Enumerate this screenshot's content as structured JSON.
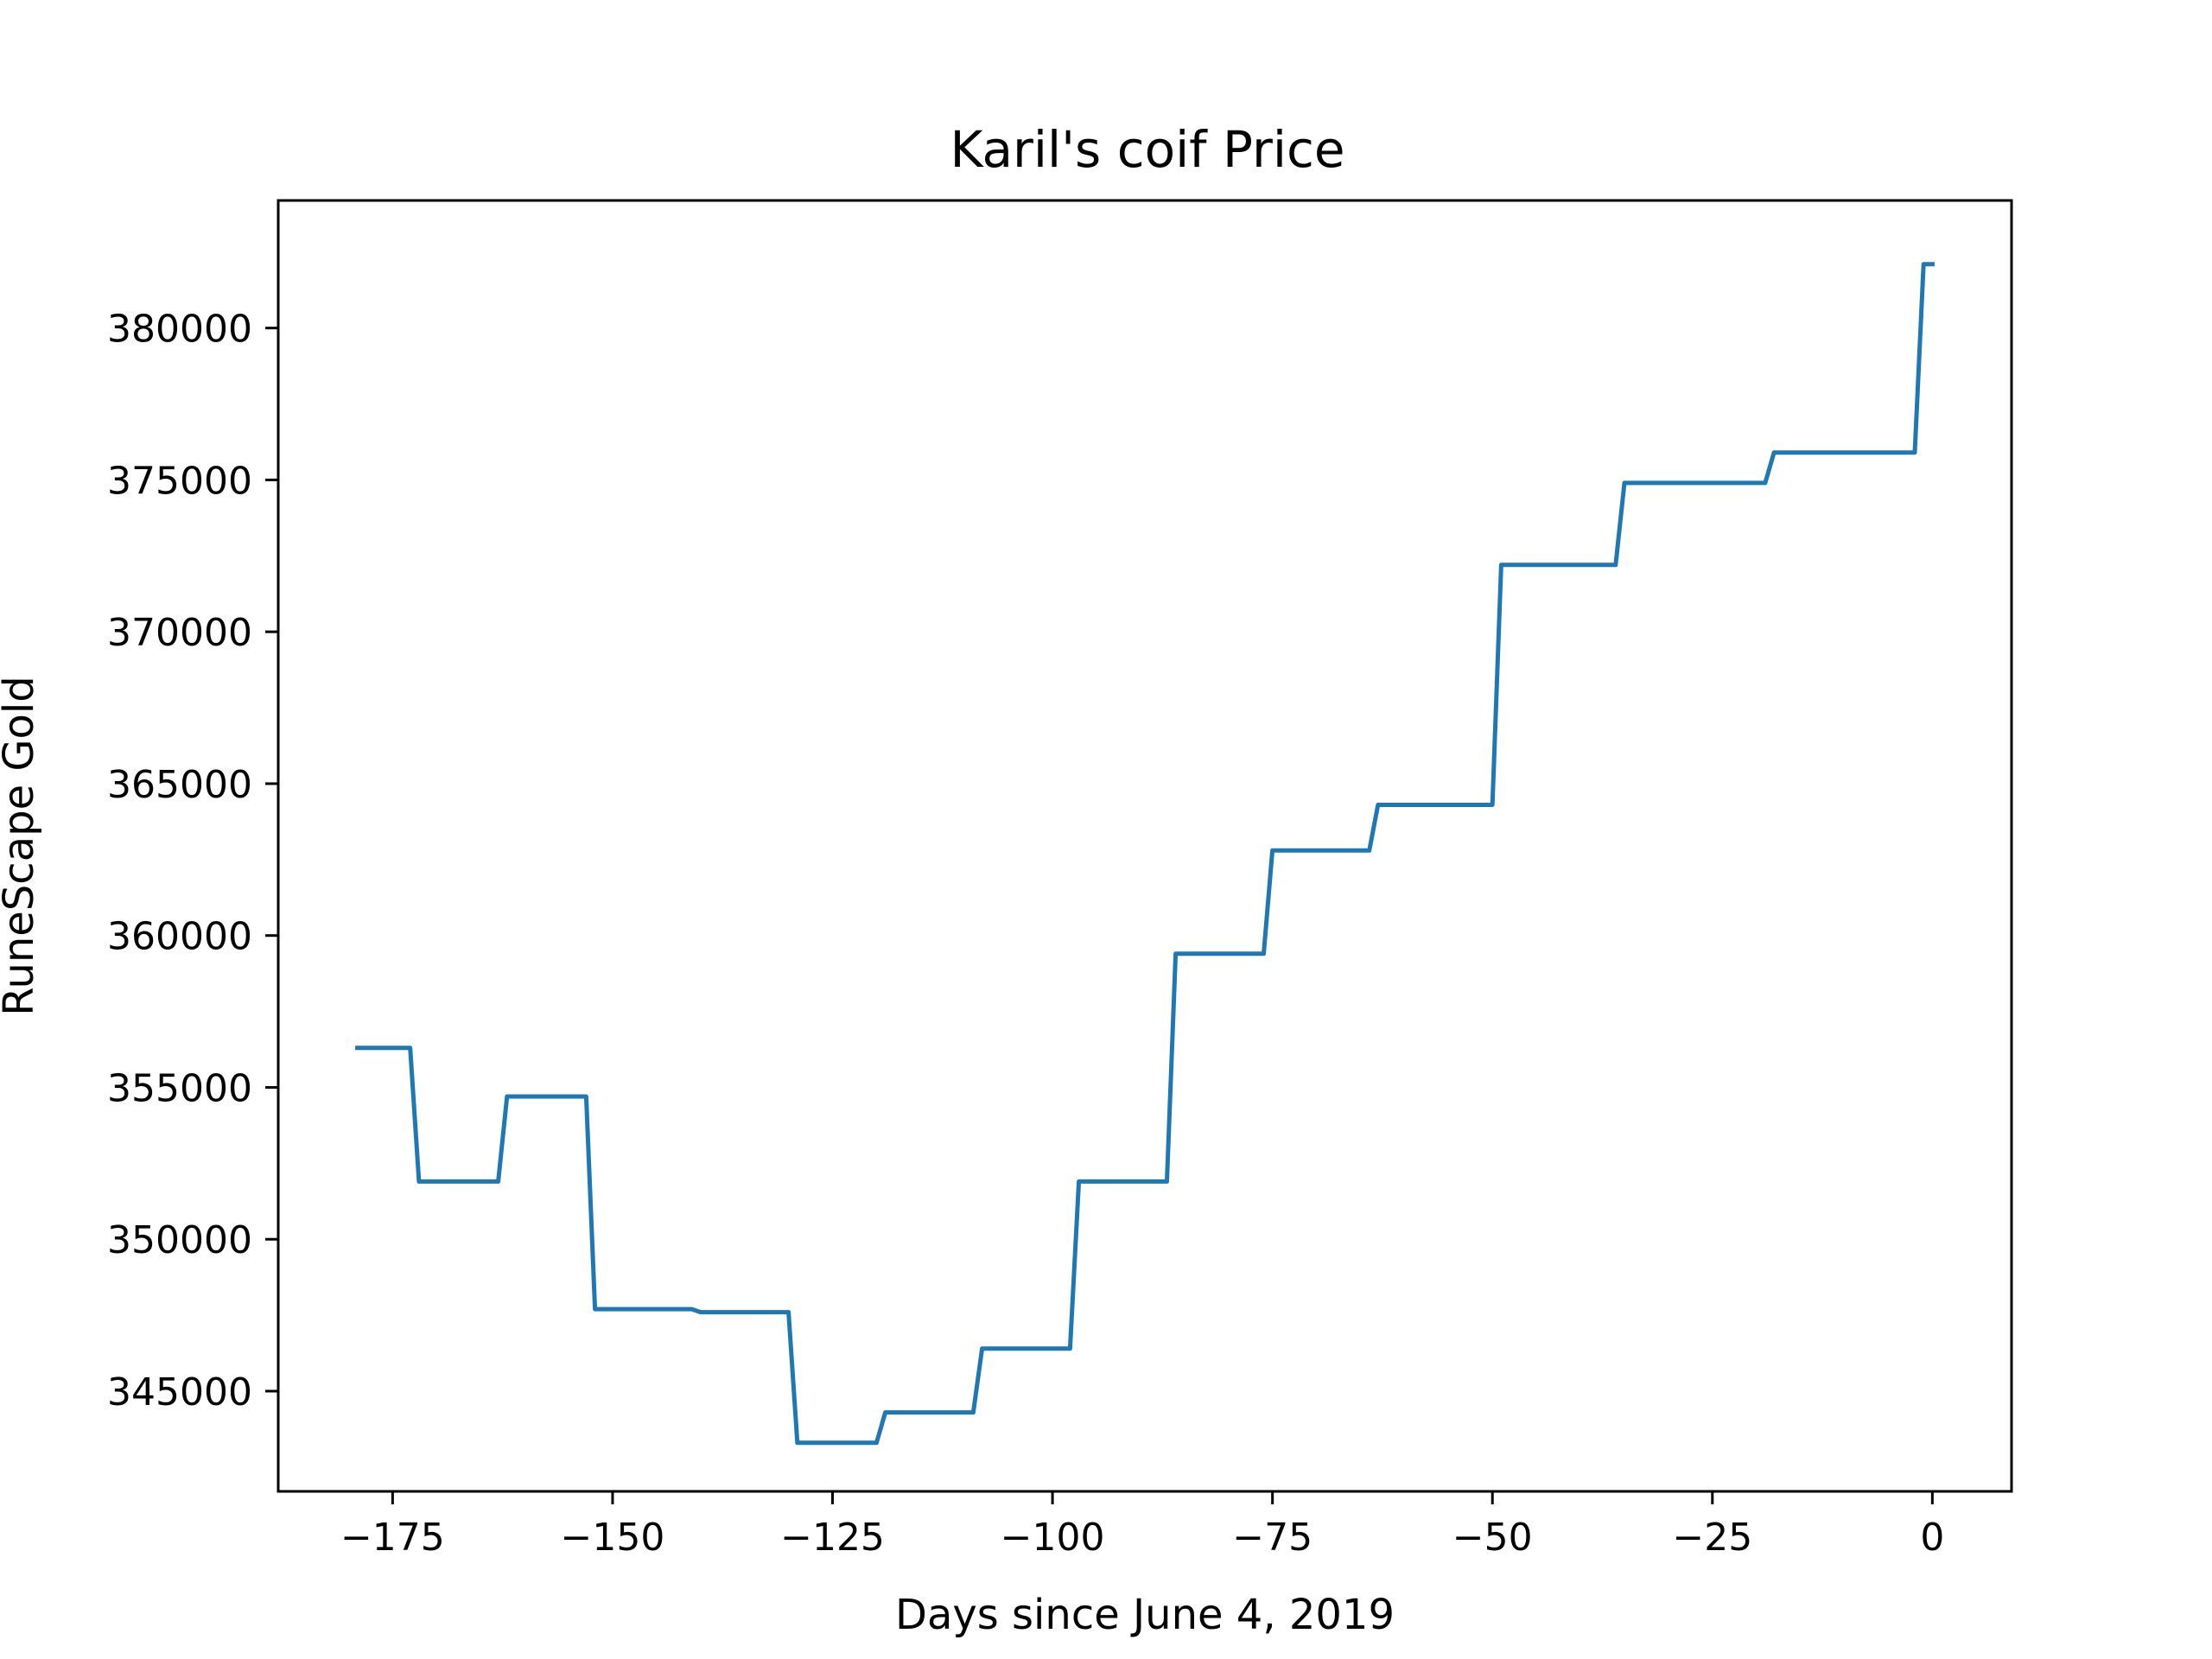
{
  "chart_data": {
    "type": "line",
    "title": "Karil's coif Price",
    "xlabel": "Days since June 4, 2019",
    "ylabel": "RuneScape Gold",
    "xlim": [
      -188,
      9
    ],
    "ylim": [
      341700,
      384200
    ],
    "x_ticks": [
      -175,
      -150,
      -125,
      -100,
      -75,
      -50,
      -25,
      0
    ],
    "x_tick_labels": [
      "−175",
      "−150",
      "−125",
      "−100",
      "−75",
      "−50",
      "−25",
      "0"
    ],
    "y_ticks": [
      345000,
      350000,
      355000,
      360000,
      365000,
      370000,
      375000,
      380000
    ],
    "y_tick_labels": [
      "345000",
      "350000",
      "355000",
      "360000",
      "365000",
      "370000",
      "375000",
      "380000"
    ],
    "grid": false,
    "line_color": "#1f77b4",
    "series": [
      {
        "x": [
          -179,
          -173,
          -172,
          -163,
          -162,
          -153,
          -152,
          -141,
          -140,
          -130,
          -129,
          -120,
          -119,
          -109,
          -108,
          -98,
          -97,
          -87,
          -86,
          -76,
          -75,
          -64,
          -63,
          -50,
          -49,
          -36,
          -35,
          -19,
          -18,
          -2,
          -1,
          0
        ],
        "y": [
          356300,
          356300,
          351900,
          351900,
          354700,
          354700,
          347700,
          347700,
          347600,
          347600,
          343300,
          343300,
          344300,
          344300,
          346400,
          346400,
          351900,
          351900,
          359400,
          359400,
          362800,
          362800,
          364300,
          364300,
          372200,
          372200,
          374900,
          374900,
          375900,
          375900,
          382100,
          382100
        ]
      }
    ]
  }
}
